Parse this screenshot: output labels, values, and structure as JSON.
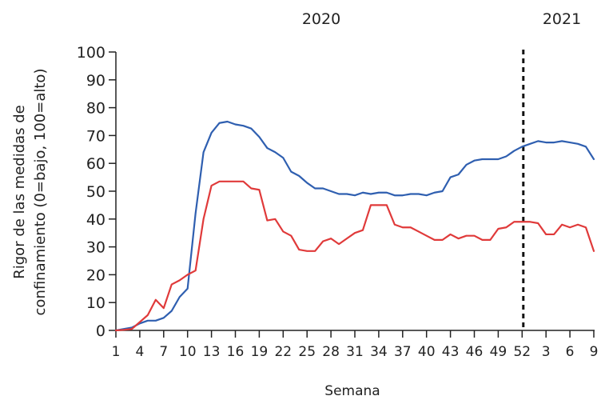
{
  "chart_data": {
    "type": "line",
    "ylabel_lines": [
      "Rigor de las medidas de",
      "confinamiento (0=bajo, 100=alto)"
    ],
    "xlabel": "Semana",
    "years": [
      "2020",
      "2021"
    ],
    "ylim": [
      0,
      100
    ],
    "yticks": [
      0,
      10,
      20,
      30,
      40,
      50,
      60,
      70,
      80,
      90,
      100
    ],
    "x": [
      "1",
      "2",
      "3",
      "4",
      "5",
      "6",
      "7",
      "8",
      "9",
      "10",
      "11",
      "12",
      "13",
      "14",
      "15",
      "16",
      "17",
      "18",
      "19",
      "20",
      "21",
      "22",
      "23",
      "24",
      "25",
      "26",
      "27",
      "28",
      "29",
      "30",
      "31",
      "32",
      "33",
      "34",
      "35",
      "36",
      "37",
      "38",
      "39",
      "40",
      "41",
      "42",
      "43",
      "44",
      "45",
      "46",
      "47",
      "48",
      "49",
      "50",
      "51",
      "52",
      "1",
      "2",
      "3",
      "4",
      "5",
      "6",
      "7",
      "8",
      "9"
    ],
    "xtick_labels": [
      "1",
      "4",
      "7",
      "10",
      "13",
      "16",
      "19",
      "22",
      "25",
      "28",
      "31",
      "34",
      "37",
      "40",
      "43",
      "46",
      "49",
      "52",
      "3",
      "6",
      "9"
    ],
    "divider_after": "52",
    "series": [
      {
        "color": "#2f5fb0",
        "values": [
          0,
          0.5,
          1,
          2.5,
          3.5,
          3.5,
          4.5,
          7,
          12,
          15,
          42,
          64,
          71,
          74.5,
          75,
          74,
          73.5,
          72.5,
          69.5,
          65.5,
          64,
          62,
          57,
          55.5,
          53,
          51,
          51,
          50,
          49,
          49,
          48.5,
          49.5,
          49,
          49.5,
          49.5,
          48.5,
          48.5,
          49,
          49,
          48.5,
          49.5,
          50,
          55,
          56,
          59.5,
          61,
          61.5,
          61.5,
          61.5,
          62.5,
          64.5,
          66,
          67,
          68,
          67.5,
          67.5,
          68,
          67.5,
          67,
          66,
          61.5
        ]
      },
      {
        "color": "#e03a3a",
        "values": [
          0,
          0.2,
          0.5,
          3,
          5.5,
          11,
          8,
          16.5,
          18,
          20,
          21.5,
          40,
          52,
          53.5,
          53.5,
          53.5,
          53.5,
          51,
          50.5,
          39.5,
          40,
          35.5,
          34,
          29,
          28.5,
          28.5,
          32,
          33,
          31,
          33,
          35,
          36,
          45,
          45,
          45,
          38,
          37,
          37,
          35.5,
          34,
          32.5,
          32.5,
          34.5,
          33,
          34,
          34,
          32.5,
          32.5,
          36.5,
          37,
          39,
          39,
          39,
          38.5,
          34.5,
          34.5,
          38,
          37,
          38,
          37,
          28.5
        ]
      }
    ]
  }
}
